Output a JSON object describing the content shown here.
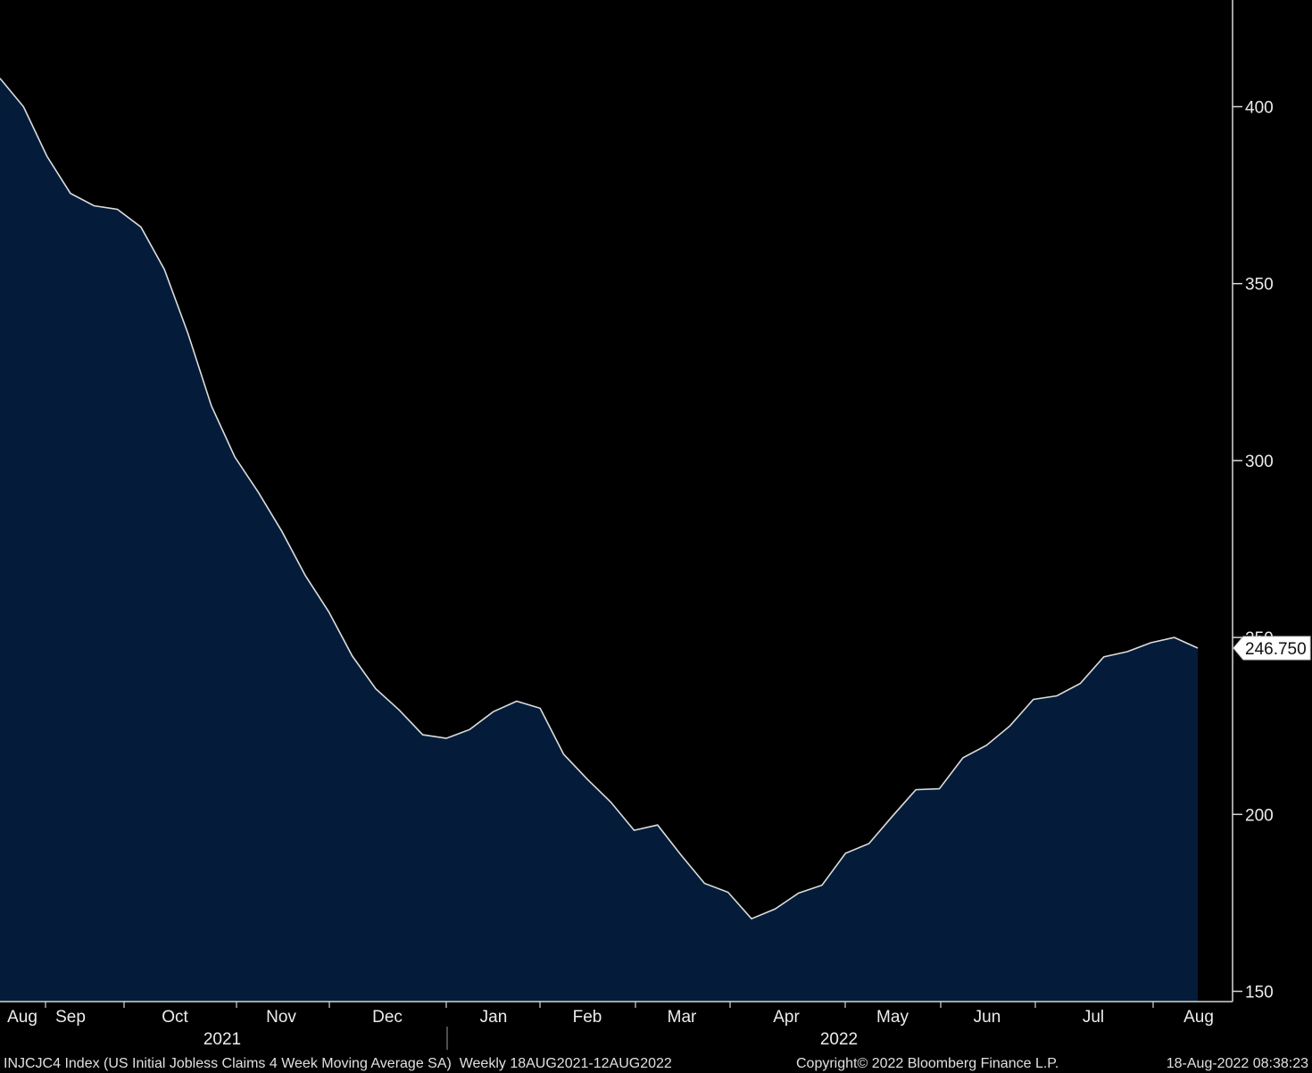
{
  "chart_data": {
    "type": "area",
    "ylim": [
      148,
      430
    ],
    "y_ticks": [
      150,
      200,
      250,
      300,
      350,
      400
    ],
    "last_value_label": "246.750",
    "months": [
      "Aug",
      "Sep",
      "Oct",
      "Nov",
      "Dec",
      "Jan",
      "Feb",
      "Mar",
      "Apr",
      "May",
      "Jun",
      "Jul",
      "Aug"
    ],
    "years": [
      "2021",
      "2022"
    ],
    "series": [
      {
        "values": [
          408,
          400,
          386,
          375.5,
          372,
          371,
          366,
          354,
          336,
          315.5,
          301,
          291,
          280,
          267.5,
          257.25,
          244.75,
          235.5,
          229.5,
          222.5,
          221.5,
          224,
          229,
          232,
          230,
          217,
          210,
          203.5,
          195.5,
          197,
          188.5,
          180.5,
          178,
          170.5,
          173.25,
          177.75,
          180,
          189,
          191.75,
          199.5,
          207,
          207.25,
          216,
          219.5,
          225,
          232.5,
          233.5,
          237,
          244.5,
          246,
          248.5,
          250,
          247
        ]
      }
    ],
    "colors": {
      "area": "#041c3a",
      "line": "#dcdcdc",
      "background": "#000000"
    }
  },
  "footer": {
    "description": "INJCJC4 Index (US Initial Jobless Claims 4 Week Moving Average SA)  Weekly 18AUG2021-12AUG2022",
    "copyright": "Copyright© 2022 Bloomberg Finance L.P.",
    "timestamp": "18-Aug-2022 08:38:23"
  }
}
